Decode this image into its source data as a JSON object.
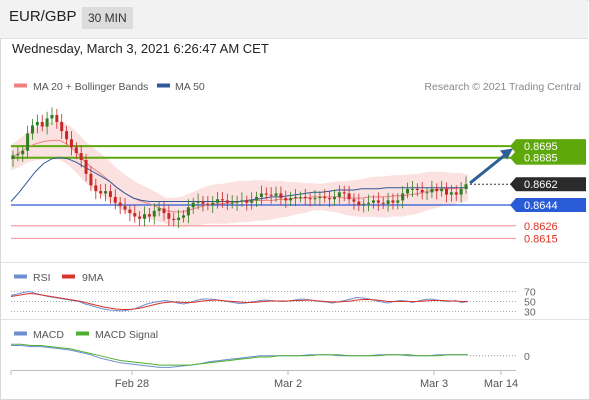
{
  "header": {
    "symbol": "EUR/GBP",
    "timeframe": "30 MIN"
  },
  "datetime": "Wednesday, March 3, 2021 6:26:47 AM CET",
  "legend": {
    "ma20": "MA 20 + Bollinger Bands",
    "ma50": "MA 50",
    "credit": "Research © 2021 Trading Central",
    "rsi": "RSI",
    "rsi_ma": "9MA",
    "macd": "MACD",
    "macd_signal": "MACD Signal"
  },
  "colors": {
    "ma20": "#f08080",
    "bollinger_fill": "#fbdada",
    "ma50": "#2e5a9a",
    "resistance": "#5fa80c",
    "support": "#2a5bd7",
    "support_light": "#f2a0a0",
    "target_label": "#e0301e",
    "arrow": "#2e5f97",
    "candle_up": "#2e7d1f",
    "candle_down": "#c62828",
    "rsi_line": "#6d8fd0",
    "rsi_ma_line": "#d9342b",
    "macd_line": "#6d8fd0",
    "macd_signal_line": "#4caf2f"
  },
  "chart_data": [
    {
      "type": "candlestick",
      "panel": "price",
      "y_range": [
        0.8605,
        0.8735
      ],
      "current_price": 0.8662,
      "levels": [
        {
          "price": 0.8695,
          "kind": "resistance",
          "label": "0.8695"
        },
        {
          "price": 0.8685,
          "kind": "resistance",
          "label": "0.8685"
        },
        {
          "price": 0.8644,
          "kind": "pivot",
          "label": "0.8644"
        },
        {
          "price": 0.8626,
          "kind": "support",
          "label": "0.8626"
        },
        {
          "price": 0.8615,
          "kind": "support",
          "label": "0.8615"
        }
      ],
      "current_label": "0.8662",
      "x_labels": [
        "Feb 28",
        "Mar 2",
        "Mar 3",
        "Mar 14"
      ],
      "close_series": [
        0.8687,
        0.8688,
        0.8691,
        0.8706,
        0.8713,
        0.8716,
        0.8712,
        0.8719,
        0.8722,
        0.8716,
        0.8708,
        0.8701,
        0.8694,
        0.8689,
        0.8683,
        0.8671,
        0.8661,
        0.8656,
        0.8654,
        0.8656,
        0.8651,
        0.8646,
        0.8643,
        0.864,
        0.8637,
        0.8634,
        0.8632,
        0.8636,
        0.8634,
        0.8639,
        0.8641,
        0.8637,
        0.8632,
        0.8631,
        0.8633,
        0.8635,
        0.8642,
        0.8646,
        0.8647,
        0.8645,
        0.8644,
        0.8646,
        0.8649,
        0.8648,
        0.8646,
        0.8646,
        0.8647,
        0.8648,
        0.8646,
        0.8648,
        0.8651,
        0.8654,
        0.8653,
        0.8652,
        0.8654,
        0.865,
        0.8648,
        0.865,
        0.8651,
        0.8651,
        0.865,
        0.8649,
        0.865,
        0.8651,
        0.865,
        0.8649,
        0.8651,
        0.8655,
        0.8654,
        0.8649,
        0.8647,
        0.8644,
        0.8645,
        0.8646,
        0.8648,
        0.8646,
        0.8645,
        0.8648,
        0.8646,
        0.8648,
        0.8654,
        0.8658,
        0.8658,
        0.8657,
        0.8655,
        0.8655,
        0.8658,
        0.8656,
        0.8658,
        0.8653,
        0.8655,
        0.8653,
        0.8658,
        0.8662
      ],
      "ma20_series": [
        0.8685,
        0.8689,
        0.8694,
        0.8697,
        0.8699,
        0.87,
        0.87,
        0.8696,
        0.869,
        0.8682,
        0.8676,
        0.8671,
        0.8665,
        0.8659,
        0.8654,
        0.865,
        0.8647,
        0.8645,
        0.8642,
        0.8639,
        0.8638,
        0.8638,
        0.864,
        0.8642,
        0.8644,
        0.8645,
        0.8645,
        0.8646,
        0.8647,
        0.8647,
        0.8648,
        0.8648,
        0.8648,
        0.8649,
        0.8649,
        0.865,
        0.865,
        0.8651,
        0.8651,
        0.8651,
        0.8651,
        0.865,
        0.865,
        0.865,
        0.8651,
        0.8651,
        0.8651,
        0.8652,
        0.8652,
        0.8653,
        0.8654,
        0.8656,
        0.8657,
        0.8658,
        0.8658,
        0.8659,
        0.8659
      ],
      "ma50_series": [
        0.8647,
        0.8655,
        0.8664,
        0.8673,
        0.868,
        0.8684,
        0.8685,
        0.8684,
        0.8681,
        0.8677,
        0.8673,
        0.8669,
        0.8665,
        0.8659,
        0.8654,
        0.865,
        0.8648,
        0.8647,
        0.8647,
        0.8647,
        0.8647,
        0.8647,
        0.8647,
        0.8647,
        0.8647,
        0.8647,
        0.8647,
        0.8647,
        0.8647,
        0.8648,
        0.8649,
        0.865,
        0.8651,
        0.8651,
        0.8652,
        0.8653,
        0.8654,
        0.8655,
        0.8655,
        0.8656,
        0.8657,
        0.8657,
        0.8657,
        0.8658,
        0.8658,
        0.8658,
        0.8659,
        0.8659,
        0.8659,
        0.8659,
        0.8659,
        0.8659,
        0.8659,
        0.8659,
        0.8659,
        0.8659,
        0.8659
      ]
    },
    {
      "type": "line",
      "panel": "rsi",
      "y_range": [
        25,
        75
      ],
      "ticks": [
        "70",
        "50",
        "30"
      ],
      "series": [
        {
          "name": "RSI",
          "values": [
            62,
            65,
            68,
            70,
            66,
            63,
            60,
            58,
            56,
            54,
            52,
            50,
            45,
            42,
            38,
            35,
            33,
            32,
            31,
            33,
            35,
            40,
            45,
            48,
            50,
            52,
            50,
            47,
            45,
            48,
            52,
            55,
            55,
            54,
            52,
            50,
            48,
            46,
            47,
            49,
            51,
            53,
            52,
            51,
            50,
            51,
            53,
            55,
            54,
            52,
            50,
            49,
            47,
            49,
            52,
            55,
            58,
            57,
            55,
            52,
            49,
            47,
            50,
            52,
            51,
            48,
            51,
            54,
            55,
            53,
            51,
            50,
            52,
            48,
            50
          ]
        },
        {
          "name": "9MA",
          "values": [
            60,
            62,
            64,
            66,
            65,
            63,
            61,
            59,
            57,
            55,
            53,
            51,
            48,
            45,
            42,
            39,
            37,
            35,
            34,
            34,
            35,
            37,
            40,
            43,
            46,
            48,
            49,
            49,
            48,
            48,
            49,
            51,
            52,
            53,
            52,
            51,
            50,
            49,
            48,
            48,
            49,
            50,
            51,
            51,
            51,
            51,
            52,
            52,
            53,
            52,
            51,
            50,
            49,
            49,
            50,
            51,
            53,
            54,
            54,
            53,
            52,
            50,
            50,
            50,
            50,
            50,
            50,
            51,
            52,
            52,
            52,
            51,
            51,
            50,
            50
          ]
        }
      ]
    },
    {
      "type": "line",
      "panel": "macd",
      "y_range": [
        -0.0014,
        0.0012
      ],
      "ticks": [
        "0"
      ],
      "series": [
        {
          "name": "MACD",
          "values": [
            0.0009,
            0.0009,
            0.0008,
            0.0008,
            0.0007,
            0.0006,
            0.0005,
            0.0003,
            0.0001,
            -0.0002,
            -0.0004,
            -0.0006,
            -0.0007,
            -0.0008,
            -0.0009,
            -0.001,
            -0.001,
            -0.0009,
            -0.0008,
            -0.0007,
            -0.0005,
            -0.0004,
            -0.0003,
            -0.0002,
            -0.0001,
            0.0,
            0.0,
            0.0,
            0.0,
            0.0,
            0.0001,
            0.0001,
            0.0001,
            0.0,
            0.0,
            0.0,
            0.0,
            0.0001,
            0.0001,
            0.0001,
            0.0,
            0.0,
            0.0,
            0.0001,
            0.0001,
            0.0001,
            0.0001
          ]
        },
        {
          "name": "MACD Signal",
          "values": [
            0.001,
            0.001,
            0.0009,
            0.0009,
            0.0008,
            0.0007,
            0.0006,
            0.0004,
            0.0002,
            0.0,
            -0.0002,
            -0.0004,
            -0.0005,
            -0.0006,
            -0.0007,
            -0.0008,
            -0.0008,
            -0.0008,
            -0.0008,
            -0.0007,
            -0.0006,
            -0.0005,
            -0.0004,
            -0.0003,
            -0.0002,
            -0.0001,
            -0.0001,
            0.0,
            0.0,
            0.0,
            0.0,
            0.0001,
            0.0001,
            0.0001,
            0.0,
            0.0,
            0.0,
            0.0,
            0.0001,
            0.0001,
            0.0001,
            0.0,
            0.0,
            0.0,
            0.0001,
            0.0001,
            0.0001
          ]
        }
      ]
    }
  ]
}
